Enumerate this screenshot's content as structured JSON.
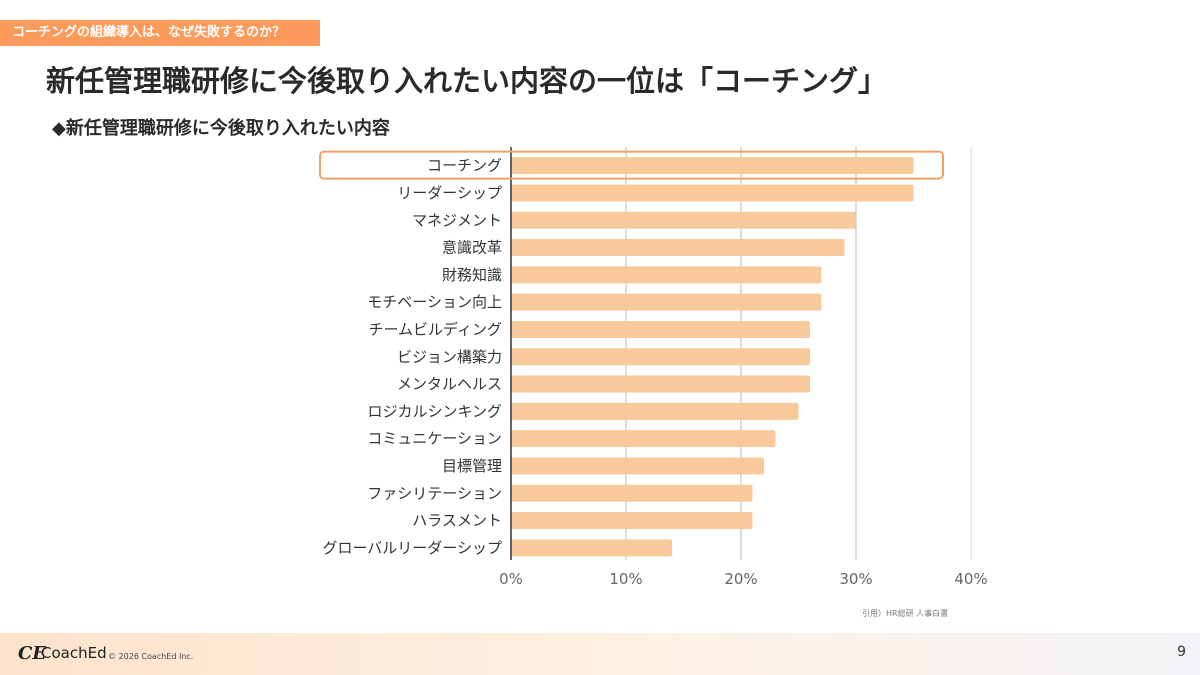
{
  "header": {
    "tagline": "コーチングの組織導入は、なぜ失敗するのか？",
    "title": "新任管理職研修に今後取り入れたい内容の一位は「コーチング」",
    "subtitle": "◆新任管理職研修に今後取り入れたい内容"
  },
  "colors": {
    "bar": "#f8c99b",
    "highlight": "#f0a06a",
    "tagline_bg": "#fb9a5a",
    "gridline": "#d0d0d0",
    "axis": "#333333"
  },
  "chart_data": {
    "type": "bar",
    "orientation": "horizontal",
    "title": "◆新任管理職研修に今後取り入れたい内容",
    "categories": [
      "コーチング",
      "リーダーシップ",
      "マネジメント",
      "意識改革",
      "財務知識",
      "モチベーション向上",
      "チームビルディング",
      "ビジョン構築力",
      "メンタルヘルス",
      "ロジカルシンキング",
      "コミュニケーション",
      "目標管理",
      "ファシリテーション",
      "ハラスメント",
      "グローバルリーダーシップ"
    ],
    "values": [
      35,
      35,
      30,
      29,
      27,
      27,
      26,
      26,
      26,
      25,
      23,
      22,
      21,
      21,
      14
    ],
    "unit": "%",
    "xlim": [
      0,
      40
    ],
    "xticks": [
      0,
      10,
      20,
      30,
      40
    ],
    "xtick_labels": [
      "0%",
      "10%",
      "20%",
      "30%",
      "40%"
    ],
    "grid": true,
    "highlighted_category": "コーチング",
    "xlabel": "",
    "ylabel": ""
  },
  "citation": "引用）HR総研 人事白書",
  "footer": {
    "logo_mark": "CE",
    "logo_text": "CoachEd",
    "copyright": "© 2026 CoachEd Inc.",
    "page_number": "9"
  }
}
